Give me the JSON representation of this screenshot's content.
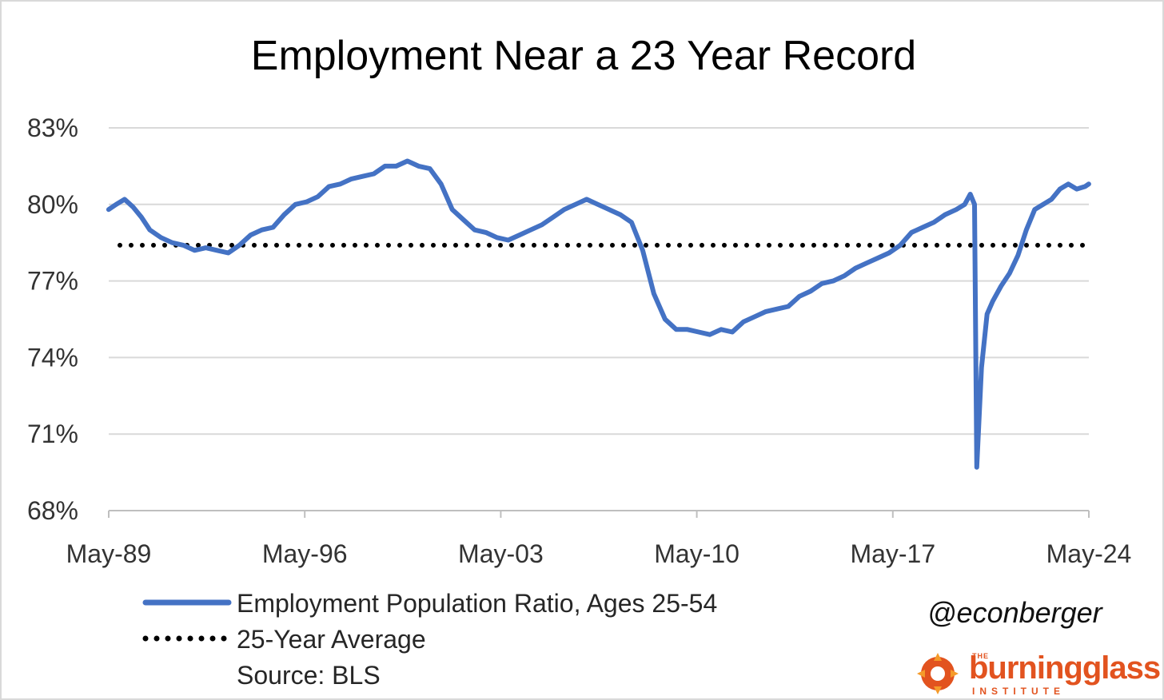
{
  "chart_data": {
    "type": "line",
    "title": "Employment Near a 23 Year Record",
    "y_ticks": [
      "83%",
      "80%",
      "77%",
      "74%",
      "71%",
      "68%"
    ],
    "ylim": [
      68,
      83
    ],
    "x_ticks": [
      "May-89",
      "May-96",
      "May-03",
      "May-10",
      "May-17",
      "May-24"
    ],
    "x_range": [
      "May-89",
      "May-24"
    ],
    "grid": "horizontal",
    "legend_placement": "bottom-left",
    "series": [
      {
        "name": "Employment Population Ratio, Ages 25-54",
        "style": "solid",
        "color": "#4472c4",
        "x": [
          1989.33,
          1989.6,
          1989.9,
          1990.2,
          1990.5,
          1990.8,
          1991.2,
          1991.6,
          1992.0,
          1992.4,
          1992.8,
          1993.2,
          1993.6,
          1994.0,
          1994.4,
          1994.8,
          1995.2,
          1995.6,
          1996.0,
          1996.4,
          1996.8,
          1997.2,
          1997.6,
          1998.0,
          1998.4,
          1998.8,
          1999.2,
          1999.6,
          2000.0,
          2000.4,
          2000.8,
          2001.2,
          2001.6,
          2002.0,
          2002.4,
          2002.8,
          2003.2,
          2003.6,
          2004.0,
          2004.4,
          2004.8,
          2005.2,
          2005.6,
          2006.0,
          2006.4,
          2006.8,
          2007.2,
          2007.6,
          2008.0,
          2008.4,
          2008.8,
          2009.2,
          2009.6,
          2010.0,
          2010.4,
          2010.8,
          2011.2,
          2011.6,
          2012.0,
          2012.4,
          2012.8,
          2013.2,
          2013.6,
          2014.0,
          2014.4,
          2014.8,
          2015.2,
          2015.6,
          2016.0,
          2016.4,
          2016.8,
          2017.2,
          2017.6,
          2018.0,
          2018.4,
          2018.8,
          2019.2,
          2019.6,
          2019.9,
          2020.1,
          2020.25,
          2020.33,
          2020.5,
          2020.7,
          2020.9,
          2021.2,
          2021.5,
          2021.8,
          2022.1,
          2022.4,
          2022.7,
          2023.0,
          2023.3,
          2023.6,
          2023.9,
          2024.2,
          2024.33
        ],
        "y": [
          79.8,
          80.0,
          80.2,
          79.9,
          79.5,
          79.0,
          78.7,
          78.5,
          78.4,
          78.2,
          78.3,
          78.2,
          78.1,
          78.4,
          78.8,
          79.0,
          79.1,
          79.6,
          80.0,
          80.1,
          80.3,
          80.7,
          80.8,
          81.0,
          81.1,
          81.2,
          81.5,
          81.5,
          81.7,
          81.5,
          81.4,
          80.8,
          79.8,
          79.4,
          79.0,
          78.9,
          78.7,
          78.6,
          78.8,
          79.0,
          79.2,
          79.5,
          79.8,
          80.0,
          80.2,
          80.0,
          79.8,
          79.6,
          79.3,
          78.2,
          76.5,
          75.5,
          75.1,
          75.1,
          75.0,
          74.9,
          75.1,
          75.0,
          75.4,
          75.6,
          75.8,
          75.9,
          76.0,
          76.4,
          76.6,
          76.9,
          77.0,
          77.2,
          77.5,
          77.7,
          77.9,
          78.1,
          78.4,
          78.9,
          79.1,
          79.3,
          79.6,
          79.8,
          80.0,
          80.4,
          80.0,
          69.7,
          73.6,
          75.7,
          76.2,
          76.8,
          77.3,
          78.0,
          79.0,
          79.8,
          80.0,
          80.2,
          80.6,
          80.8,
          80.6,
          80.7,
          80.8
        ]
      },
      {
        "name": "25-Year Average",
        "style": "dotted",
        "color": "#000000",
        "value": 78.4
      }
    ],
    "source_note": "Source: BLS"
  },
  "attribution": {
    "handle": "@econberger",
    "brand_the": "THE",
    "brand_name": "burningglass",
    "brand_sub": "INSTITUTE"
  },
  "colors": {
    "series_line": "#4472c4",
    "average_line": "#000000",
    "grid": "#d9d9d9",
    "brand": "#e2531f"
  }
}
